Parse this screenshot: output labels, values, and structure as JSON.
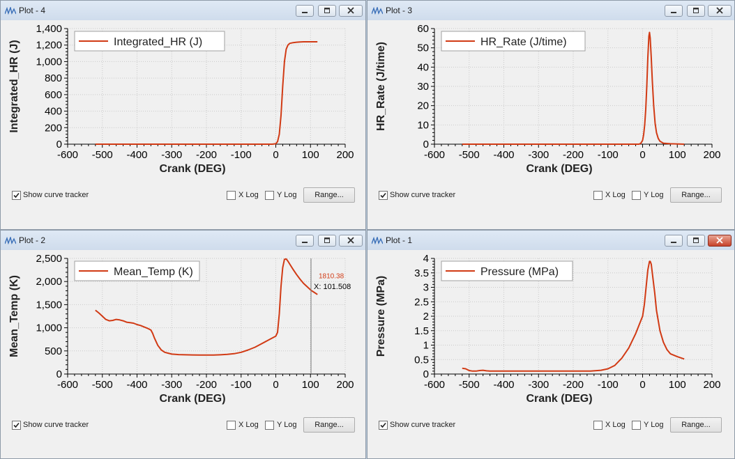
{
  "accent_color": "#d13a14",
  "windows": [
    {
      "title": "Plot - 4",
      "close_red": false,
      "chart_data": {
        "type": "line",
        "title": "",
        "series": [
          {
            "name": "Integrated_HR (J)",
            "color": "#d13a14",
            "x": [
              -520,
              -400,
              -300,
              -200,
              -100,
              -10,
              0,
              5,
              10,
              15,
              20,
              25,
              30,
              35,
              40,
              50,
              60,
              70,
              80,
              100,
              120
            ],
            "y": [
              0,
              0,
              0,
              0,
              0,
              0,
              5,
              30,
              120,
              350,
              700,
              1000,
              1150,
              1200,
              1220,
              1230,
              1235,
              1238,
              1240,
              1240,
              1240
            ]
          }
        ],
        "xlabel": "Crank (DEG)",
        "ylabel": "Integrated_HR (J)",
        "xlim": [
          -600,
          200
        ],
        "ylim": [
          0,
          1400
        ],
        "xticks": [
          "-600",
          "-500",
          "-400",
          "-300",
          "-200",
          "-100",
          "0",
          "100",
          "200"
        ],
        "yticks": [
          "0",
          "200",
          "400",
          "600",
          "800",
          "1,000",
          "1,200",
          "1,400"
        ],
        "grid": true,
        "legend": "top-left"
      },
      "footer": {
        "show_tracker": "Show curve tracker",
        "x_log": "X Log",
        "y_log": "Y Log",
        "range": "Range..."
      }
    },
    {
      "title": "Plot - 3",
      "close_red": false,
      "chart_data": {
        "type": "line",
        "title": "",
        "series": [
          {
            "name": "HR_Rate (J/time)",
            "color": "#d13a14",
            "x": [
              -520,
              -400,
              -200,
              -100,
              -10,
              -5,
              0,
              3,
              6,
              9,
              12,
              15,
              18,
              20,
              22,
              25,
              28,
              32,
              36,
              40,
              45,
              50,
              60,
              80,
              120
            ],
            "y": [
              0,
              0,
              0,
              0,
              0,
              0.5,
              2,
              5,
              10,
              18,
              30,
              45,
              56,
              58,
              55,
              45,
              33,
              20,
              11,
              6,
              3,
              1.5,
              0.5,
              0.2,
              0
            ]
          }
        ],
        "xlabel": "Crank (DEG)",
        "ylabel": "HR_Rate (J/time)",
        "xlim": [
          -600,
          200
        ],
        "ylim": [
          0,
          60
        ],
        "xticks": [
          "-600",
          "-500",
          "-400",
          "-300",
          "-200",
          "-100",
          "0",
          "100",
          "200"
        ],
        "yticks": [
          "0",
          "10",
          "20",
          "30",
          "40",
          "50",
          "60"
        ],
        "grid": true,
        "legend": "top-left"
      },
      "footer": {
        "show_tracker": "Show curve tracker",
        "x_log": "X Log",
        "y_log": "Y Log",
        "range": "Range..."
      }
    },
    {
      "title": "Plot - 2",
      "close_red": false,
      "chart_data": {
        "type": "line",
        "title": "",
        "series": [
          {
            "name": "Mean_Temp (K)",
            "color": "#d13a14",
            "x": [
              -520,
              -510,
              -500,
              -490,
              -480,
              -470,
              -460,
              -450,
              -440,
              -430,
              -420,
              -410,
              -400,
              -390,
              -380,
              -370,
              -360,
              -355,
              -350,
              -340,
              -330,
              -320,
              -310,
              -300,
              -280,
              -260,
              -240,
              -220,
              -200,
              -180,
              -160,
              -140,
              -120,
              -100,
              -80,
              -60,
              -40,
              -20,
              -10,
              0,
              5,
              10,
              15,
              20,
              25,
              30,
              35,
              40,
              45,
              50,
              60,
              70,
              80,
              90,
              101.5,
              110,
              120
            ],
            "y": [
              1380,
              1320,
              1250,
              1180,
              1150,
              1160,
              1180,
              1170,
              1150,
              1120,
              1110,
              1100,
              1070,
              1050,
              1020,
              990,
              950,
              880,
              780,
              620,
              520,
              470,
              450,
              430,
              420,
              415,
              412,
              410,
              410,
              410,
              415,
              425,
              440,
              470,
              520,
              580,
              660,
              740,
              780,
              820,
              900,
              1300,
              1900,
              2300,
              2480,
              2490,
              2440,
              2380,
              2320,
              2260,
              2150,
              2050,
              1960,
              1890,
              1810.38,
              1770,
              1720
            ]
          }
        ],
        "xlabel": "Crank (DEG)",
        "ylabel": "Mean_Temp (K)",
        "xlim": [
          -600,
          200
        ],
        "ylim": [
          0,
          2500
        ],
        "xticks": [
          "-600",
          "-500",
          "-400",
          "-300",
          "-200",
          "-100",
          "0",
          "100",
          "200"
        ],
        "yticks": [
          "0",
          "500",
          "1,000",
          "1,500",
          "2,000",
          "2,500"
        ],
        "grid": true,
        "legend": "top-left",
        "tracker": {
          "x": 101.508,
          "y": 1810.38,
          "y_label": "1810.38",
          "x_label": "X: 101.508"
        }
      },
      "footer": {
        "show_tracker": "Show curve tracker",
        "x_log": "X Log",
        "y_log": "Y Log",
        "range": "Range..."
      }
    },
    {
      "title": "Plot - 1",
      "close_red": true,
      "chart_data": {
        "type": "line",
        "title": "",
        "series": [
          {
            "name": "Pressure (MPa)",
            "color": "#d13a14",
            "x": [
              -520,
              -510,
              -500,
              -490,
              -480,
              -470,
              -460,
              -450,
              -440,
              -400,
              -300,
              -200,
              -150,
              -120,
              -100,
              -80,
              -60,
              -40,
              -20,
              -10,
              0,
              5,
              10,
              15,
              20,
              22,
              25,
              28,
              30,
              35,
              40,
              50,
              60,
              70,
              80,
              100,
              120
            ],
            "y": [
              0.2,
              0.18,
              0.12,
              0.1,
              0.1,
              0.12,
              0.13,
              0.11,
              0.1,
              0.1,
              0.1,
              0.1,
              0.1,
              0.13,
              0.18,
              0.3,
              0.55,
              0.9,
              1.4,
              1.7,
              2.0,
              2.4,
              3.0,
              3.6,
              3.9,
              3.9,
              3.8,
              3.5,
              3.3,
              2.8,
              2.2,
              1.5,
              1.1,
              0.85,
              0.7,
              0.6,
              0.52
            ]
          }
        ],
        "xlabel": "Crank (DEG)",
        "ylabel": "Pressure (MPa)",
        "xlim": [
          -600,
          200
        ],
        "ylim": [
          0,
          4
        ],
        "xticks": [
          "-600",
          "-500",
          "-400",
          "-300",
          "-200",
          "-100",
          "0",
          "100",
          "200"
        ],
        "yticks": [
          "0",
          "0.5",
          "1",
          "1.5",
          "2",
          "2.5",
          "3",
          "3.5",
          "4"
        ],
        "grid": true,
        "legend": "top-left"
      },
      "footer": {
        "show_tracker": "Show curve tracker",
        "x_log": "X Log",
        "y_log": "Y Log",
        "range": "Range..."
      }
    }
  ]
}
